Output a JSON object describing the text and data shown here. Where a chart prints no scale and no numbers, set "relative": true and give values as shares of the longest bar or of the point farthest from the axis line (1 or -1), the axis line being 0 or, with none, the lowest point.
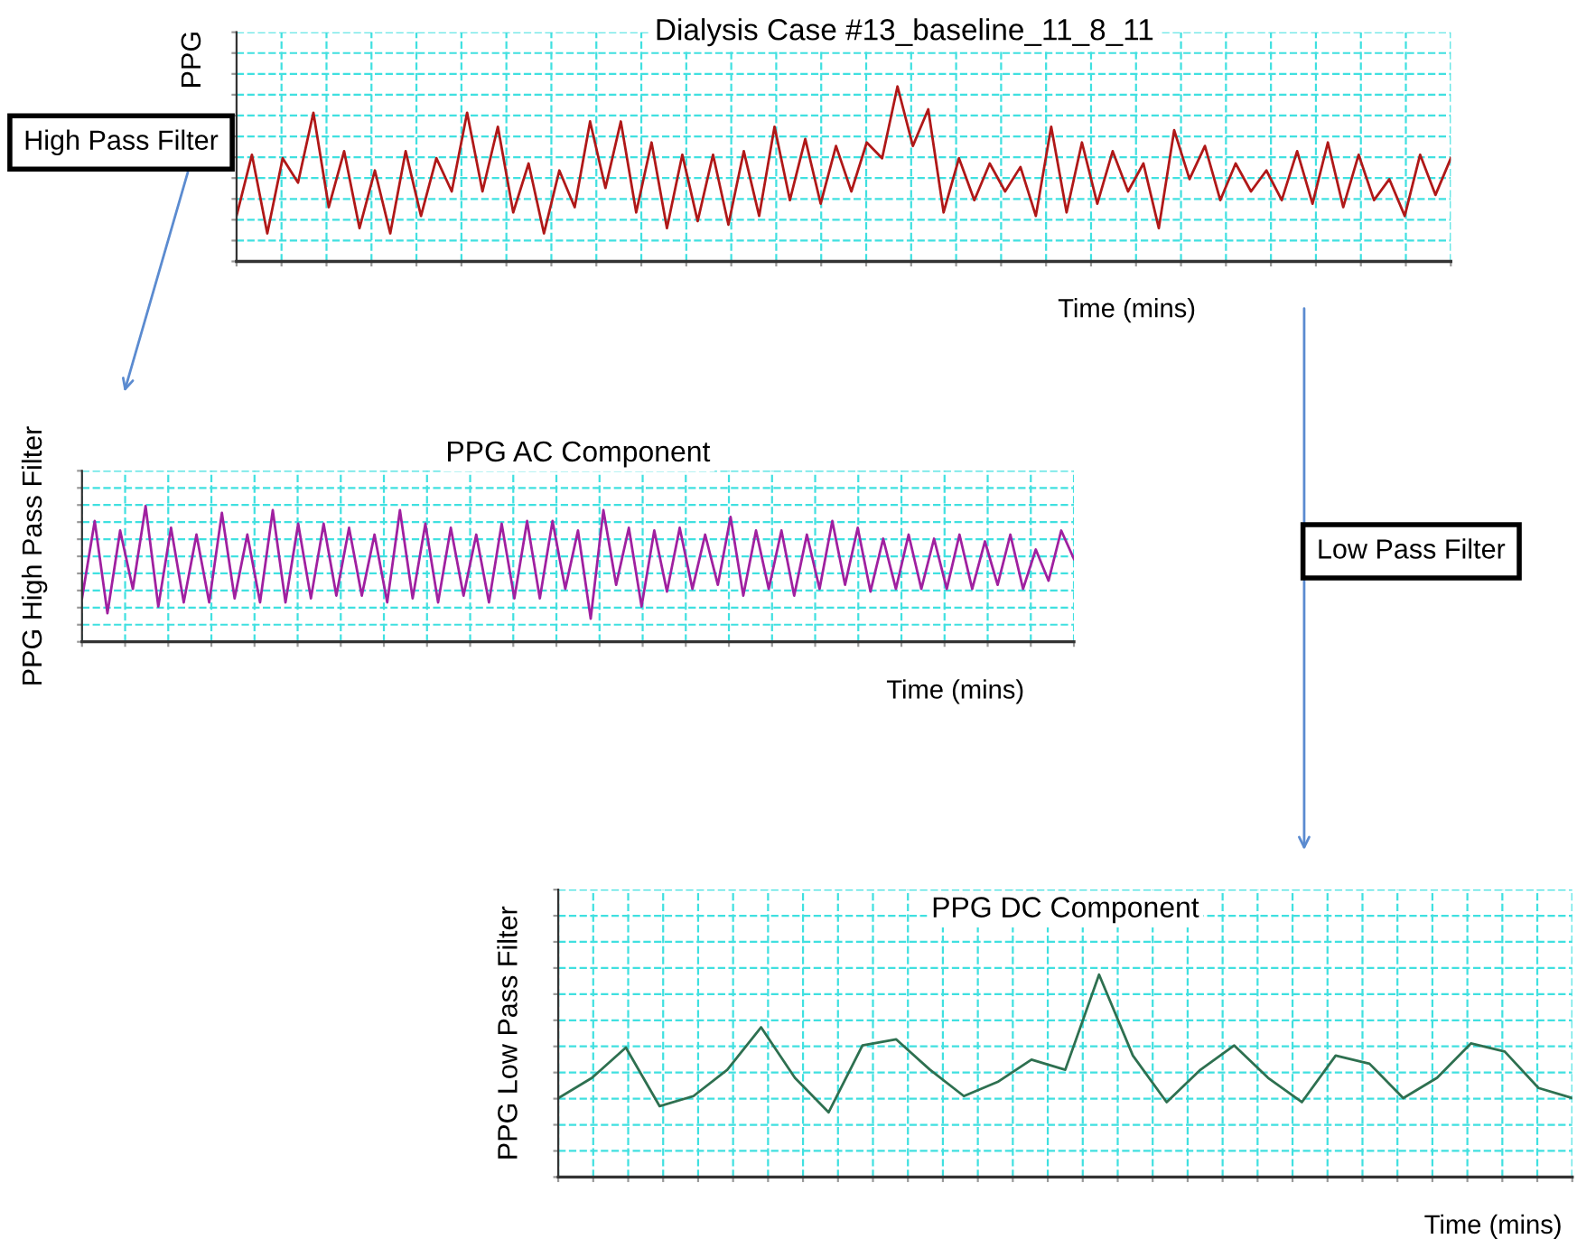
{
  "chart_data": [
    {
      "type": "line",
      "title": "Dialysis Case #13_baseline_11_8_11",
      "xlabel": "Time (mins)",
      "ylabel": "PPG",
      "relative": true,
      "grid": true,
      "tick_labels": false,
      "categories": [
        null,
        null,
        null,
        null,
        null,
        null,
        null,
        null,
        null,
        null,
        null,
        null,
        null,
        null,
        null,
        null,
        null,
        null,
        null,
        null,
        null,
        null,
        null,
        null,
        null,
        null,
        null,
        null,
        null,
        null,
        null,
        null,
        null,
        null,
        null,
        null,
        null,
        null,
        null,
        null,
        null,
        null,
        null,
        null,
        null,
        null,
        null,
        null,
        null,
        null,
        null,
        null,
        null,
        null,
        null,
        null,
        null,
        null,
        null,
        null,
        null,
        null,
        null,
        null,
        null,
        null,
        null,
        null,
        null,
        null,
        null,
        null,
        null,
        null,
        null,
        null,
        null,
        null,
        null,
        null
      ],
      "series": [
        {
          "color": "#b01818",
          "values": [
            0.26,
            0.61,
            0.16,
            0.59,
            0.45,
            0.85,
            0.31,
            0.63,
            0.19,
            0.52,
            0.16,
            0.63,
            0.26,
            0.59,
            0.4,
            0.85,
            0.4,
            0.77,
            0.28,
            0.56,
            0.16,
            0.52,
            0.31,
            0.8,
            0.42,
            0.8,
            0.28,
            0.68,
            0.19,
            0.61,
            0.23,
            0.61,
            0.21,
            0.63,
            0.26,
            0.77,
            0.35,
            0.7,
            0.33,
            0.66,
            0.4,
            0.68,
            0.59,
            1.0,
            0.66,
            0.87,
            0.28,
            0.59,
            0.35,
            0.56,
            0.4,
            0.54,
            0.26,
            0.77,
            0.28,
            0.68,
            0.33,
            0.63,
            0.4,
            0.56,
            0.19,
            0.75,
            0.47,
            0.66,
            0.35,
            0.56,
            0.4,
            0.52,
            0.35,
            0.63,
            0.33,
            0.68,
            0.31,
            0.61,
            0.35,
            0.47,
            0.26,
            0.61,
            0.38,
            0.59
          ]
        }
      ]
    },
    {
      "type": "line",
      "title": "PPG AC Component",
      "xlabel": "Time (mins)",
      "ylabel": "PPG High Pass Filter",
      "relative": true,
      "grid": true,
      "tick_labels": false,
      "annotations": [
        "High Pass Filter"
      ],
      "categories": [
        null,
        null,
        null,
        null,
        null,
        null,
        null,
        null,
        null,
        null,
        null,
        null,
        null,
        null,
        null,
        null,
        null,
        null,
        null,
        null,
        null,
        null,
        null,
        null,
        null,
        null,
        null,
        null,
        null,
        null,
        null,
        null,
        null,
        null,
        null,
        null,
        null,
        null,
        null,
        null,
        null,
        null,
        null,
        null,
        null,
        null,
        null,
        null,
        null,
        null,
        null,
        null,
        null,
        null,
        null,
        null,
        null,
        null,
        null,
        null,
        null,
        null,
        null,
        null,
        null,
        null,
        null,
        null,
        null,
        null,
        null,
        null,
        null,
        null,
        null,
        null,
        null,
        null,
        null
      ],
      "series": [
        {
          "color": "#a020a0",
          "values": [
            0.32,
            0.89,
            0.21,
            0.82,
            0.39,
            1.0,
            0.26,
            0.84,
            0.29,
            0.79,
            0.29,
            0.95,
            0.32,
            0.79,
            0.29,
            0.97,
            0.29,
            0.87,
            0.32,
            0.87,
            0.34,
            0.84,
            0.34,
            0.79,
            0.29,
            0.97,
            0.32,
            0.87,
            0.29,
            0.84,
            0.34,
            0.79,
            0.29,
            0.87,
            0.32,
            0.89,
            0.32,
            0.89,
            0.39,
            0.82,
            0.17,
            0.97,
            0.42,
            0.84,
            0.26,
            0.82,
            0.37,
            0.84,
            0.39,
            0.79,
            0.42,
            0.92,
            0.34,
            0.82,
            0.39,
            0.82,
            0.34,
            0.79,
            0.39,
            0.89,
            0.42,
            0.84,
            0.37,
            0.76,
            0.39,
            0.79,
            0.39,
            0.76,
            0.39,
            0.79,
            0.39,
            0.74,
            0.42,
            0.79,
            0.39,
            0.68,
            0.45,
            0.82,
            0.61
          ]
        }
      ]
    },
    {
      "type": "line",
      "title": "PPG DC Component",
      "xlabel": "Time (mins)",
      "ylabel": "PPG Low Pass Filter",
      "relative": true,
      "grid": true,
      "tick_labels": false,
      "annotations": [
        "Low Pass Filter"
      ],
      "categories": [
        null,
        null,
        null,
        null,
        null,
        null,
        null,
        null,
        null,
        null,
        null,
        null,
        null,
        null,
        null,
        null,
        null,
        null,
        null,
        null,
        null,
        null,
        null,
        null,
        null,
        null,
        null,
        null,
        null,
        null,
        null
      ],
      "series": [
        {
          "color": "#2e7050",
          "values": [
            0.39,
            0.49,
            0.64,
            0.35,
            0.4,
            0.53,
            0.74,
            0.49,
            0.32,
            0.65,
            0.68,
            0.53,
            0.4,
            0.47,
            0.58,
            0.53,
            1.0,
            0.6,
            0.37,
            0.53,
            0.65,
            0.49,
            0.37,
            0.6,
            0.56,
            0.39,
            0.49,
            0.66,
            0.62,
            0.44,
            0.39
          ]
        }
      ]
    }
  ]
}
